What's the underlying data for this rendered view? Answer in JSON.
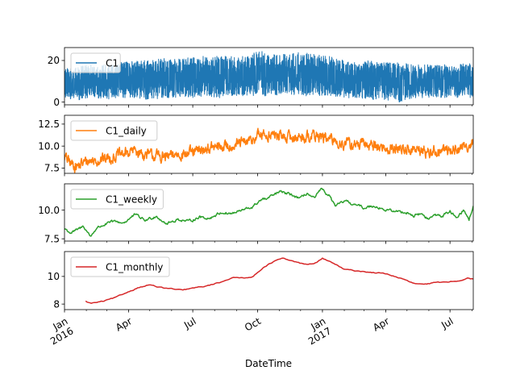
{
  "chart_data": {
    "type": "line",
    "xlabel": "DateTime",
    "x_range": [
      "2016-01-01",
      "2017-08-03"
    ],
    "x_ticks": [
      {
        "date": "2016-01-01",
        "label": "Jan",
        "sublabel": "2016"
      },
      {
        "date": "2016-04-01",
        "label": "Apr",
        "sublabel": ""
      },
      {
        "date": "2016-07-01",
        "label": "Jul",
        "sublabel": ""
      },
      {
        "date": "2016-10-01",
        "label": "Oct",
        "sublabel": ""
      },
      {
        "date": "2017-01-01",
        "label": "Jan",
        "sublabel": "2017"
      },
      {
        "date": "2017-04-01",
        "label": "Apr",
        "sublabel": ""
      },
      {
        "date": "2017-07-01",
        "label": "Jul",
        "sublabel": ""
      }
    ],
    "legend_position": "upper-left",
    "grid": false,
    "panels": [
      {
        "series_name": "C1",
        "color": "#1f77b4",
        "ylim": [
          -1.3,
          26.2
        ],
        "yticks": [
          0,
          20
        ],
        "style": "band",
        "points": [
          [
            "2016-01-01",
            2,
            16
          ],
          [
            "2016-01-20",
            1,
            17
          ],
          [
            "2016-02-10",
            2,
            18
          ],
          [
            "2016-03-01",
            1,
            18
          ],
          [
            "2016-03-20",
            2,
            19
          ],
          [
            "2016-04-10",
            2,
            20
          ],
          [
            "2016-05-01",
            1,
            20
          ],
          [
            "2016-05-20",
            2,
            21
          ],
          [
            "2016-06-10",
            2,
            21
          ],
          [
            "2016-07-01",
            2,
            22
          ],
          [
            "2016-07-20",
            3,
            22
          ],
          [
            "2016-08-10",
            2,
            22
          ],
          [
            "2016-09-01",
            3,
            22
          ],
          [
            "2016-09-20",
            3,
            22
          ],
          [
            "2016-10-01",
            3,
            25
          ],
          [
            "2016-10-20",
            3,
            23
          ],
          [
            "2016-11-10",
            4,
            23
          ],
          [
            "2016-12-01",
            3,
            24
          ],
          [
            "2016-12-20",
            3,
            23
          ],
          [
            "2017-01-10",
            3,
            22
          ],
          [
            "2017-02-01",
            2,
            21
          ],
          [
            "2017-02-20",
            2,
            20
          ],
          [
            "2017-03-10",
            1,
            20
          ],
          [
            "2017-04-01",
            1,
            19
          ],
          [
            "2017-04-20",
            0,
            19
          ],
          [
            "2017-05-10",
            2,
            18
          ],
          [
            "2017-06-01",
            2,
            18
          ],
          [
            "2017-06-20",
            2,
            18
          ],
          [
            "2017-07-10",
            2,
            18
          ],
          [
            "2017-08-03",
            2,
            19
          ]
        ]
      },
      {
        "series_name": "C1_daily",
        "color": "#ff7f0e",
        "ylim": [
          6.9,
          13.5
        ],
        "yticks": [
          7.5,
          10.0,
          12.5
        ],
        "style": "line",
        "noise": 0.5,
        "points": [
          [
            "2016-01-01",
            8.8
          ],
          [
            "2016-01-10",
            8.0
          ],
          [
            "2016-01-20",
            7.7
          ],
          [
            "2016-02-01",
            8.3
          ],
          [
            "2016-02-15",
            8.4
          ],
          [
            "2016-03-01",
            8.6
          ],
          [
            "2016-03-20",
            9.0
          ],
          [
            "2016-04-10",
            9.5
          ],
          [
            "2016-04-25",
            9.0
          ],
          [
            "2016-05-10",
            8.9
          ],
          [
            "2016-05-25",
            8.7
          ],
          [
            "2016-06-10",
            9.1
          ],
          [
            "2016-07-01",
            9.2
          ],
          [
            "2016-07-20",
            9.7
          ],
          [
            "2016-08-10",
            9.9
          ],
          [
            "2016-09-01",
            10.2
          ],
          [
            "2016-09-20",
            10.5
          ],
          [
            "2016-10-01",
            11.2
          ],
          [
            "2016-10-20",
            11.3
          ],
          [
            "2016-11-10",
            11.0
          ],
          [
            "2016-12-01",
            11.0
          ],
          [
            "2016-12-20",
            11.2
          ],
          [
            "2017-01-01",
            11.0
          ],
          [
            "2017-01-15",
            10.6
          ],
          [
            "2017-02-01",
            10.3
          ],
          [
            "2017-02-20",
            10.1
          ],
          [
            "2017-03-10",
            10.2
          ],
          [
            "2017-04-01",
            9.7
          ],
          [
            "2017-04-20",
            9.7
          ],
          [
            "2017-05-10",
            9.6
          ],
          [
            "2017-06-01",
            9.3
          ],
          [
            "2017-06-20",
            9.5
          ],
          [
            "2017-07-10",
            9.6
          ],
          [
            "2017-07-25",
            10.0
          ],
          [
            "2017-08-03",
            10.6
          ]
        ]
      },
      {
        "series_name": "C1_weekly",
        "color": "#2ca02c",
        "ylim": [
          7.3,
          12.3
        ],
        "yticks": [
          7.5,
          10.0
        ],
        "style": "line",
        "noise": 0.1,
        "points": [
          [
            "2016-01-01",
            8.4
          ],
          [
            "2016-01-10",
            8.0
          ],
          [
            "2016-01-20",
            8.3
          ],
          [
            "2016-01-28",
            8.6
          ],
          [
            "2016-02-07",
            7.7
          ],
          [
            "2016-02-15",
            8.4
          ],
          [
            "2016-02-25",
            8.7
          ],
          [
            "2016-03-10",
            9.0
          ],
          [
            "2016-03-25",
            8.9
          ],
          [
            "2016-04-10",
            9.6
          ],
          [
            "2016-04-25",
            9.1
          ],
          [
            "2016-05-10",
            9.5
          ],
          [
            "2016-05-25",
            8.8
          ],
          [
            "2016-06-10",
            9.2
          ],
          [
            "2016-06-25",
            9.0
          ],
          [
            "2016-07-10",
            9.4
          ],
          [
            "2016-07-25",
            9.3
          ],
          [
            "2016-08-10",
            9.8
          ],
          [
            "2016-08-25",
            9.7
          ],
          [
            "2016-09-10",
            10.0
          ],
          [
            "2016-09-25",
            10.3
          ],
          [
            "2016-10-05",
            10.9
          ],
          [
            "2016-10-15",
            11.0
          ],
          [
            "2016-11-01",
            11.6
          ],
          [
            "2016-11-15",
            11.4
          ],
          [
            "2016-12-01",
            11.0
          ],
          [
            "2016-12-10",
            11.5
          ],
          [
            "2016-12-20",
            11.0
          ],
          [
            "2016-12-30",
            11.8
          ],
          [
            "2017-01-10",
            11.3
          ],
          [
            "2017-01-20",
            10.3
          ],
          [
            "2017-02-01",
            10.8
          ],
          [
            "2017-02-15",
            10.5
          ],
          [
            "2017-03-01",
            10.2
          ],
          [
            "2017-03-15",
            10.4
          ],
          [
            "2017-04-01",
            10.0
          ],
          [
            "2017-04-15",
            9.9
          ],
          [
            "2017-05-01",
            9.8
          ],
          [
            "2017-05-10",
            9.5
          ],
          [
            "2017-05-20",
            9.7
          ],
          [
            "2017-06-01",
            9.2
          ],
          [
            "2017-06-10",
            9.6
          ],
          [
            "2017-06-20",
            9.5
          ],
          [
            "2017-07-01",
            9.9
          ],
          [
            "2017-07-10",
            9.4
          ],
          [
            "2017-07-20",
            10.0
          ],
          [
            "2017-07-28",
            9.2
          ],
          [
            "2017-08-03",
            10.3
          ]
        ]
      },
      {
        "series_name": "C1_monthly",
        "color": "#d62728",
        "ylim": [
          7.6,
          11.8
        ],
        "yticks": [
          8,
          10
        ],
        "style": "line",
        "noise": 0.03,
        "points": [
          [
            "2016-01-31",
            8.2
          ],
          [
            "2016-02-07",
            8.05
          ],
          [
            "2016-02-25",
            8.2
          ],
          [
            "2016-03-15",
            8.5
          ],
          [
            "2016-04-01",
            8.9
          ],
          [
            "2016-04-15",
            9.2
          ],
          [
            "2016-05-01",
            9.4
          ],
          [
            "2016-05-15",
            9.2
          ],
          [
            "2016-06-01",
            9.1
          ],
          [
            "2016-06-15",
            9.0
          ],
          [
            "2016-07-01",
            9.15
          ],
          [
            "2016-07-20",
            9.3
          ],
          [
            "2016-08-10",
            9.6
          ],
          [
            "2016-08-25",
            9.9
          ],
          [
            "2016-09-10",
            9.9
          ],
          [
            "2016-09-25",
            10.0
          ],
          [
            "2016-10-10",
            10.7
          ],
          [
            "2016-10-25",
            11.1
          ],
          [
            "2016-11-05",
            11.3
          ],
          [
            "2016-11-20",
            11.1
          ],
          [
            "2016-12-05",
            10.9
          ],
          [
            "2016-12-20",
            10.9
          ],
          [
            "2017-01-01",
            11.3
          ],
          [
            "2017-01-15",
            11.0
          ],
          [
            "2017-02-01",
            10.5
          ],
          [
            "2017-02-20",
            10.4
          ],
          [
            "2017-03-10",
            10.3
          ],
          [
            "2017-04-01",
            10.2
          ],
          [
            "2017-04-20",
            9.9
          ],
          [
            "2017-05-10",
            9.5
          ],
          [
            "2017-05-25",
            9.4
          ],
          [
            "2017-06-10",
            9.55
          ],
          [
            "2017-06-25",
            9.6
          ],
          [
            "2017-07-15",
            9.7
          ],
          [
            "2017-07-25",
            9.9
          ],
          [
            "2017-08-03",
            9.8
          ]
        ]
      }
    ]
  }
}
